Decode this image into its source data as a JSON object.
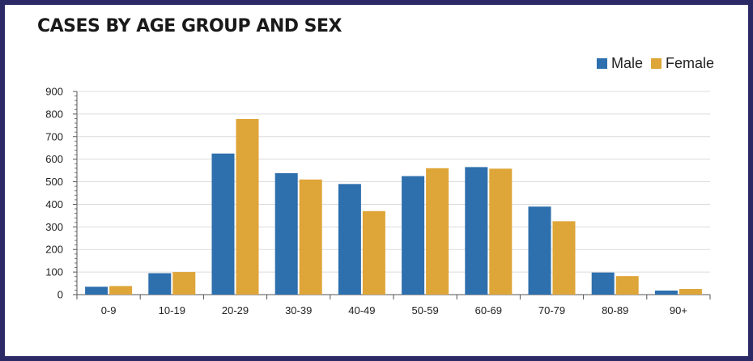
{
  "title": "CASES BY AGE GROUP AND SEX",
  "colors": {
    "male": "#2e6fad",
    "female": "#dea538",
    "frame": "#2b2a66"
  },
  "chart_data": {
    "type": "bar",
    "title": "CASES BY AGE GROUP AND SEX",
    "categories": [
      "0-9",
      "10-19",
      "20-29",
      "30-39",
      "40-49",
      "50-59",
      "60-69",
      "70-79",
      "80-89",
      "90+"
    ],
    "series": [
      {
        "name": "Male",
        "values": [
          35,
          95,
          625,
          538,
          490,
          525,
          565,
          390,
          98,
          18
        ]
      },
      {
        "name": "Female",
        "values": [
          38,
          100,
          778,
          510,
          370,
          560,
          558,
          325,
          82,
          25
        ]
      }
    ],
    "ylim": [
      0,
      900
    ],
    "yticks": [
      0,
      100,
      200,
      300,
      400,
      500,
      600,
      700,
      800,
      900
    ],
    "grid": true,
    "legend": "top-right"
  }
}
